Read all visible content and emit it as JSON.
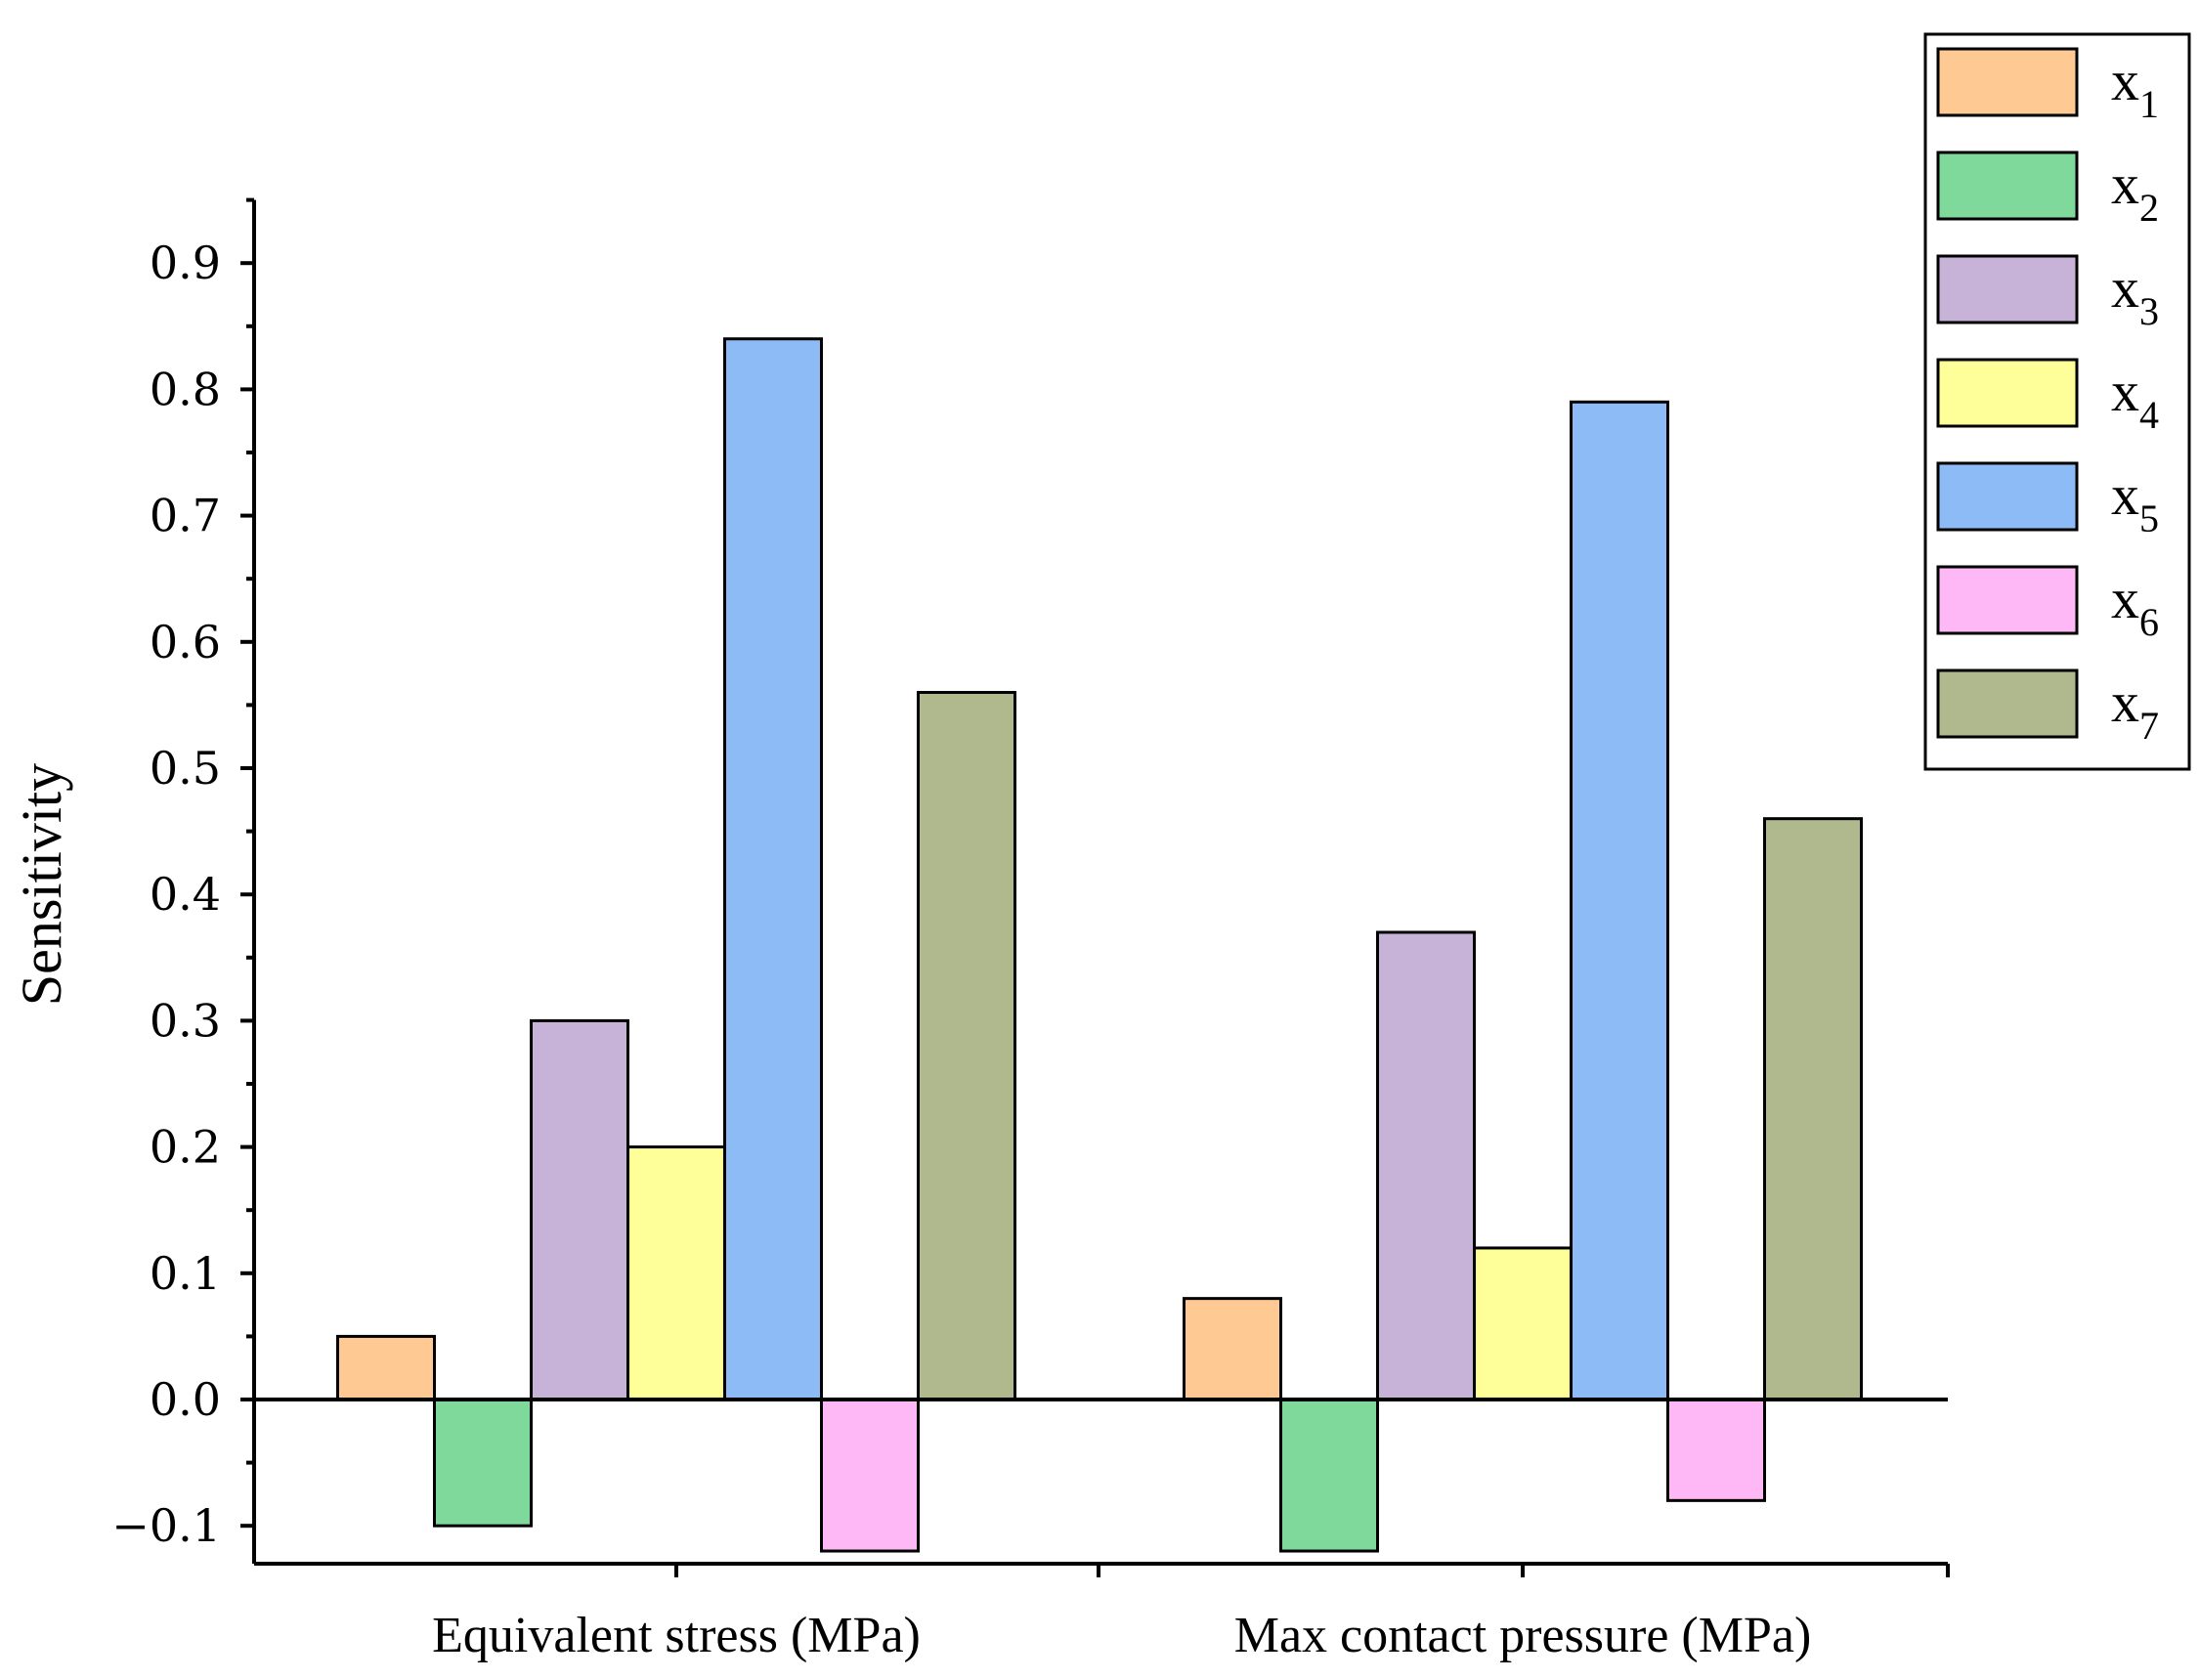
{
  "chart_data": {
    "type": "bar",
    "categories": [
      "Equivalent stress (MPa)",
      "Max contact pressure (MPa)"
    ],
    "series": [
      {
        "name": "x",
        "subscript": "1",
        "color": "#FFC994",
        "values": [
          0.05,
          0.08
        ]
      },
      {
        "name": "x",
        "subscript": "2",
        "color": "#7FD99A",
        "values": [
          -0.1,
          -0.12
        ]
      },
      {
        "name": "x",
        "subscript": "3",
        "color": "#C8B3D8",
        "values": [
          0.3,
          0.37
        ]
      },
      {
        "name": "x",
        "subscript": "4",
        "color": "#FFFF99",
        "values": [
          0.2,
          0.12
        ]
      },
      {
        "name": "x",
        "subscript": "5",
        "color": "#8DBBF6",
        "values": [
          0.84,
          0.79
        ]
      },
      {
        "name": "x",
        "subscript": "6",
        "color": "#FDB8F5",
        "values": [
          -0.12,
          -0.08
        ]
      },
      {
        "name": "x",
        "subscript": "7",
        "color": "#B0B88E",
        "values": [
          0.56,
          0.46
        ]
      }
    ],
    "ylabel": "Sensitivity",
    "xlabel": "",
    "ylim": [
      -0.13,
      0.95
    ],
    "yticks": [
      -0.1,
      0.0,
      0.1,
      0.2,
      0.3,
      0.4,
      0.5,
      0.6,
      0.7,
      0.8,
      0.9
    ],
    "ytick_labels": [
      "−0.1",
      "0.0",
      "0.1",
      "0.2",
      "0.3",
      "0.4",
      "0.5",
      "0.6",
      "0.7",
      "0.8",
      "0.9"
    ],
    "grid": false,
    "legend_position": "top-right"
  }
}
